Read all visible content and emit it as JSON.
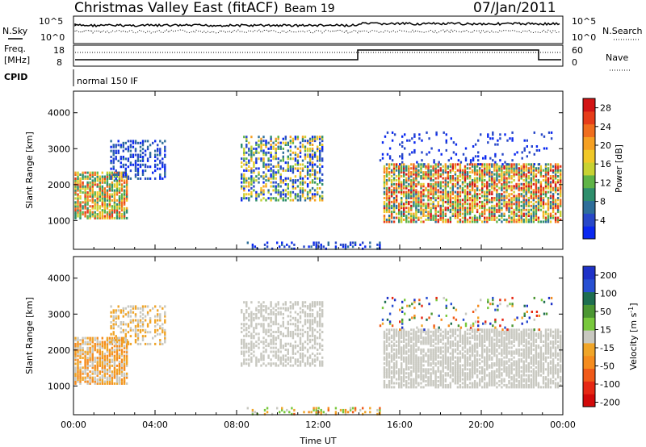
{
  "header": {
    "title": "Christmas Valley East (fitACF)",
    "beam": "Beam 19",
    "date": "07/Jan/2011"
  },
  "params": {
    "nsky_label": "N.Sky",
    "nsearch_label": "N.Search",
    "freq_label": "Freq.",
    "freq_unit": "[MHz]",
    "nave_label": "Nave",
    "cpid_label": "CPID",
    "cpid_value": "normal 150 IF",
    "noise_ticks_left": [
      "10^5",
      "10^0"
    ],
    "noise_ticks_right": [
      "10^5",
      "10^0"
    ],
    "freq_ticks": [
      "18",
      "8"
    ],
    "nave_ticks": [
      "60",
      "0"
    ]
  },
  "colors": {
    "power_scale": [
      "#0a28f0",
      "#2848c8",
      "#2e6e9a",
      "#2e8e6c",
      "#5fb446",
      "#c8d232",
      "#f0c828",
      "#f5a023",
      "#f06e1e",
      "#e63c19",
      "#d21414"
    ],
    "velocity_scale": [
      "#1e32c8",
      "#2850d2",
      "#1e6e50",
      "#4b9632",
      "#78c83c",
      "#c8c8c0",
      "#f0a528",
      "#f58c1e",
      "#f05a19",
      "#e62814",
      "#d20a0a"
    ]
  },
  "chart_data": [
    {
      "type": "heatmap",
      "name": "power",
      "ylabel": "Slant Range [km]",
      "yticks": [
        "1000",
        "2000",
        "3000",
        "4000"
      ],
      "ylim": [
        200,
        4600
      ],
      "xticks": [
        "00:00",
        "04:00",
        "08:00",
        "12:00",
        "16:00",
        "20:00",
        "00:00"
      ],
      "xlim": [
        "00:00",
        "24:00"
      ],
      "colorbar_label": "Power [dB]",
      "colorbar_ticks": [
        "28",
        "24",
        "20",
        "16",
        "12",
        "8",
        "4"
      ],
      "colorbar_range": [
        0,
        30
      ]
    },
    {
      "type": "heatmap",
      "name": "velocity",
      "ylabel": "Slant Range [km]",
      "yticks": [
        "1000",
        "2000",
        "3000",
        "4000"
      ],
      "ylim": [
        200,
        4600
      ],
      "xticks": [
        "00:00",
        "04:00",
        "08:00",
        "12:00",
        "16:00",
        "20:00",
        "00:00"
      ],
      "xlim": [
        "00:00",
        "24:00"
      ],
      "xlabel": "Time UT",
      "colorbar_label": "Velocity [m s-1]",
      "colorbar_ticks": [
        "200",
        "100",
        "50",
        "15",
        "-15",
        "-50",
        "-100",
        "-200"
      ],
      "colorbar_range": [
        -250,
        250
      ]
    }
  ]
}
